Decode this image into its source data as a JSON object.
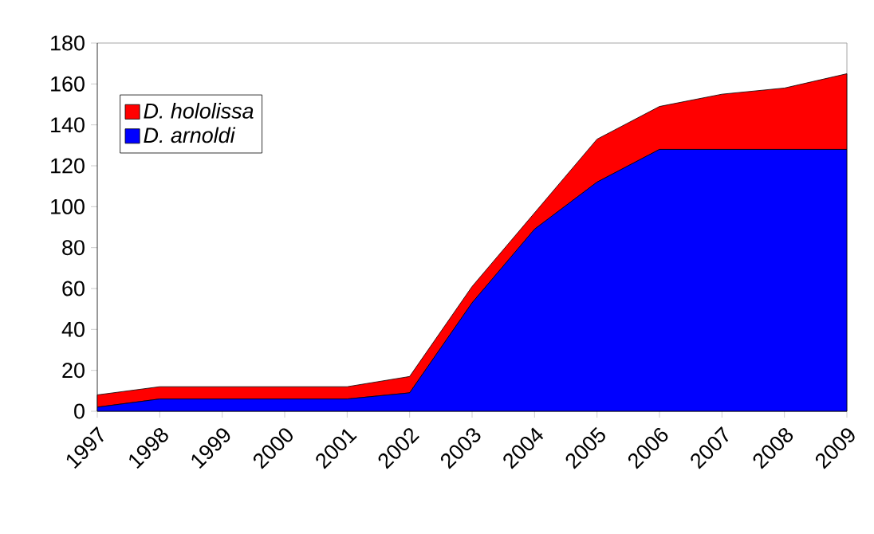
{
  "chart_data": {
    "type": "area",
    "stacked": true,
    "categories": [
      "1997",
      "1998",
      "1999",
      "2000",
      "2001",
      "2002",
      "2003",
      "2004",
      "2005",
      "2006",
      "2007",
      "2008",
      "2009"
    ],
    "series": [
      {
        "name": "D. arnoldi",
        "color": "#0000ff",
        "values": [
          2,
          6,
          6,
          6,
          6,
          9,
          53,
          89,
          112,
          128,
          128,
          128,
          128
        ]
      },
      {
        "name": "D. hololissa",
        "color": "#ff0000",
        "values": [
          6,
          6,
          6,
          6,
          6,
          8,
          8,
          8,
          21,
          21,
          27,
          30,
          37
        ]
      }
    ],
    "ylim": [
      0,
      180
    ],
    "yticks": [
      0,
      20,
      40,
      60,
      80,
      100,
      120,
      140,
      160,
      180
    ],
    "legend": "top left",
    "grid": false
  }
}
